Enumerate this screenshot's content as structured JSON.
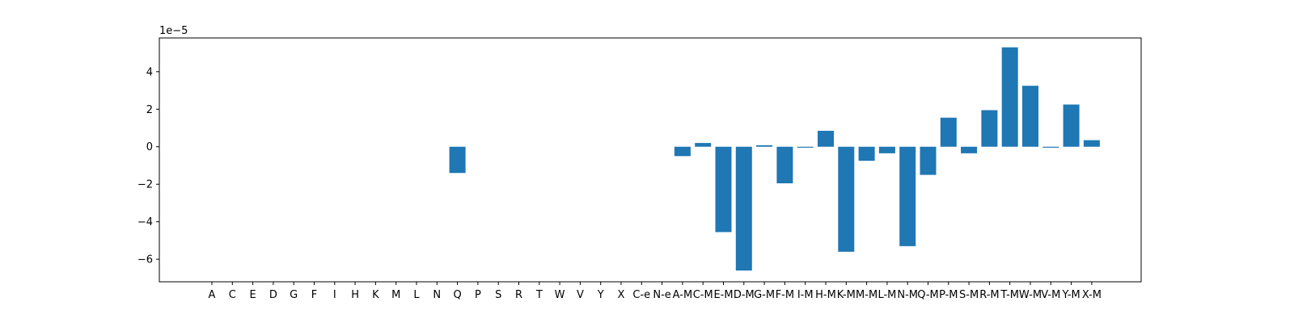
{
  "chart_data": {
    "type": "bar",
    "title": "",
    "xlabel": "",
    "ylabel": "",
    "y_scale_label": "1e−5",
    "ylim": [
      -7.2,
      5.8
    ],
    "yticks": [
      -6,
      -4,
      -2,
      0,
      2,
      4
    ],
    "ytick_labels": [
      "−6",
      "−4",
      "−2",
      "0",
      "2",
      "4"
    ],
    "grid": false,
    "bar_color": "#1f77b4",
    "categories": [
      "A",
      "C",
      "E",
      "D",
      "G",
      "F",
      "I",
      "H",
      "K",
      "M",
      "L",
      "N",
      "Q",
      "P",
      "S",
      "R",
      "T",
      "W",
      "V",
      "Y",
      "X",
      "C-e",
      "N-e",
      "A-M",
      "C-M",
      "E-M",
      "D-M",
      "G-M",
      "F-M",
      "I-M",
      "H-M",
      "K-M",
      "M-M",
      "L-M",
      "N-M",
      "Q-M",
      "P-M",
      "S-M",
      "R-M",
      "T-M",
      "W-M",
      "V-M",
      "Y-M",
      "X-M"
    ],
    "values": [
      0,
      0,
      0,
      0,
      0,
      0,
      0,
      0,
      0,
      0,
      0,
      0,
      -1.4,
      0,
      0,
      0,
      0,
      0,
      0,
      0,
      0,
      0,
      0,
      -0.5,
      0.2,
      -4.55,
      -6.6,
      0.08,
      -1.95,
      -0.05,
      0.85,
      -5.6,
      -0.75,
      -0.35,
      -5.3,
      -1.5,
      1.55,
      -0.35,
      1.95,
      5.3,
      3.25,
      -0.05,
      2.25,
      0.35
    ]
  }
}
